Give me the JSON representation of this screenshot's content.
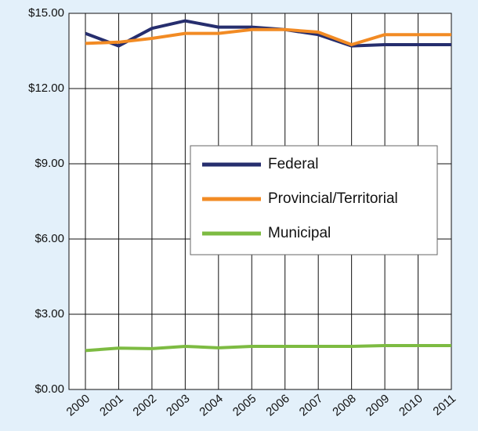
{
  "chart_data": {
    "type": "line",
    "categories": [
      "2000",
      "2001",
      "2002",
      "2003",
      "2004",
      "2005",
      "2006",
      "2007",
      "2008",
      "2009",
      "2010",
      "2011"
    ],
    "series": [
      {
        "name": "Federal",
        "color": "#262e6e",
        "values": [
          14.2,
          13.7,
          14.4,
          14.7,
          14.45,
          14.45,
          14.35,
          14.15,
          13.7,
          13.75,
          13.75,
          13.75
        ]
      },
      {
        "name": "Provincial/Territorial",
        "color": "#f28b24",
        "values": [
          13.8,
          13.85,
          14.0,
          14.2,
          14.2,
          14.35,
          14.35,
          14.25,
          13.75,
          14.15,
          14.15,
          14.15
        ]
      },
      {
        "name": "Municipal",
        "color": "#7dbb42",
        "values": [
          1.55,
          1.65,
          1.63,
          1.72,
          1.66,
          1.72,
          1.72,
          1.72,
          1.72,
          1.75,
          1.75,
          1.75
        ]
      }
    ],
    "ylim": [
      0,
      15
    ],
    "yticks": [
      {
        "value": 0,
        "label": "$0.00"
      },
      {
        "value": 3,
        "label": "$3.00"
      },
      {
        "value": 6,
        "label": "$6.00"
      },
      {
        "value": 9,
        "label": "$9.00"
      },
      {
        "value": 12,
        "label": "$12.00"
      },
      {
        "value": 15,
        "label": "$15.00"
      }
    ],
    "grid": true,
    "legend": "center"
  }
}
